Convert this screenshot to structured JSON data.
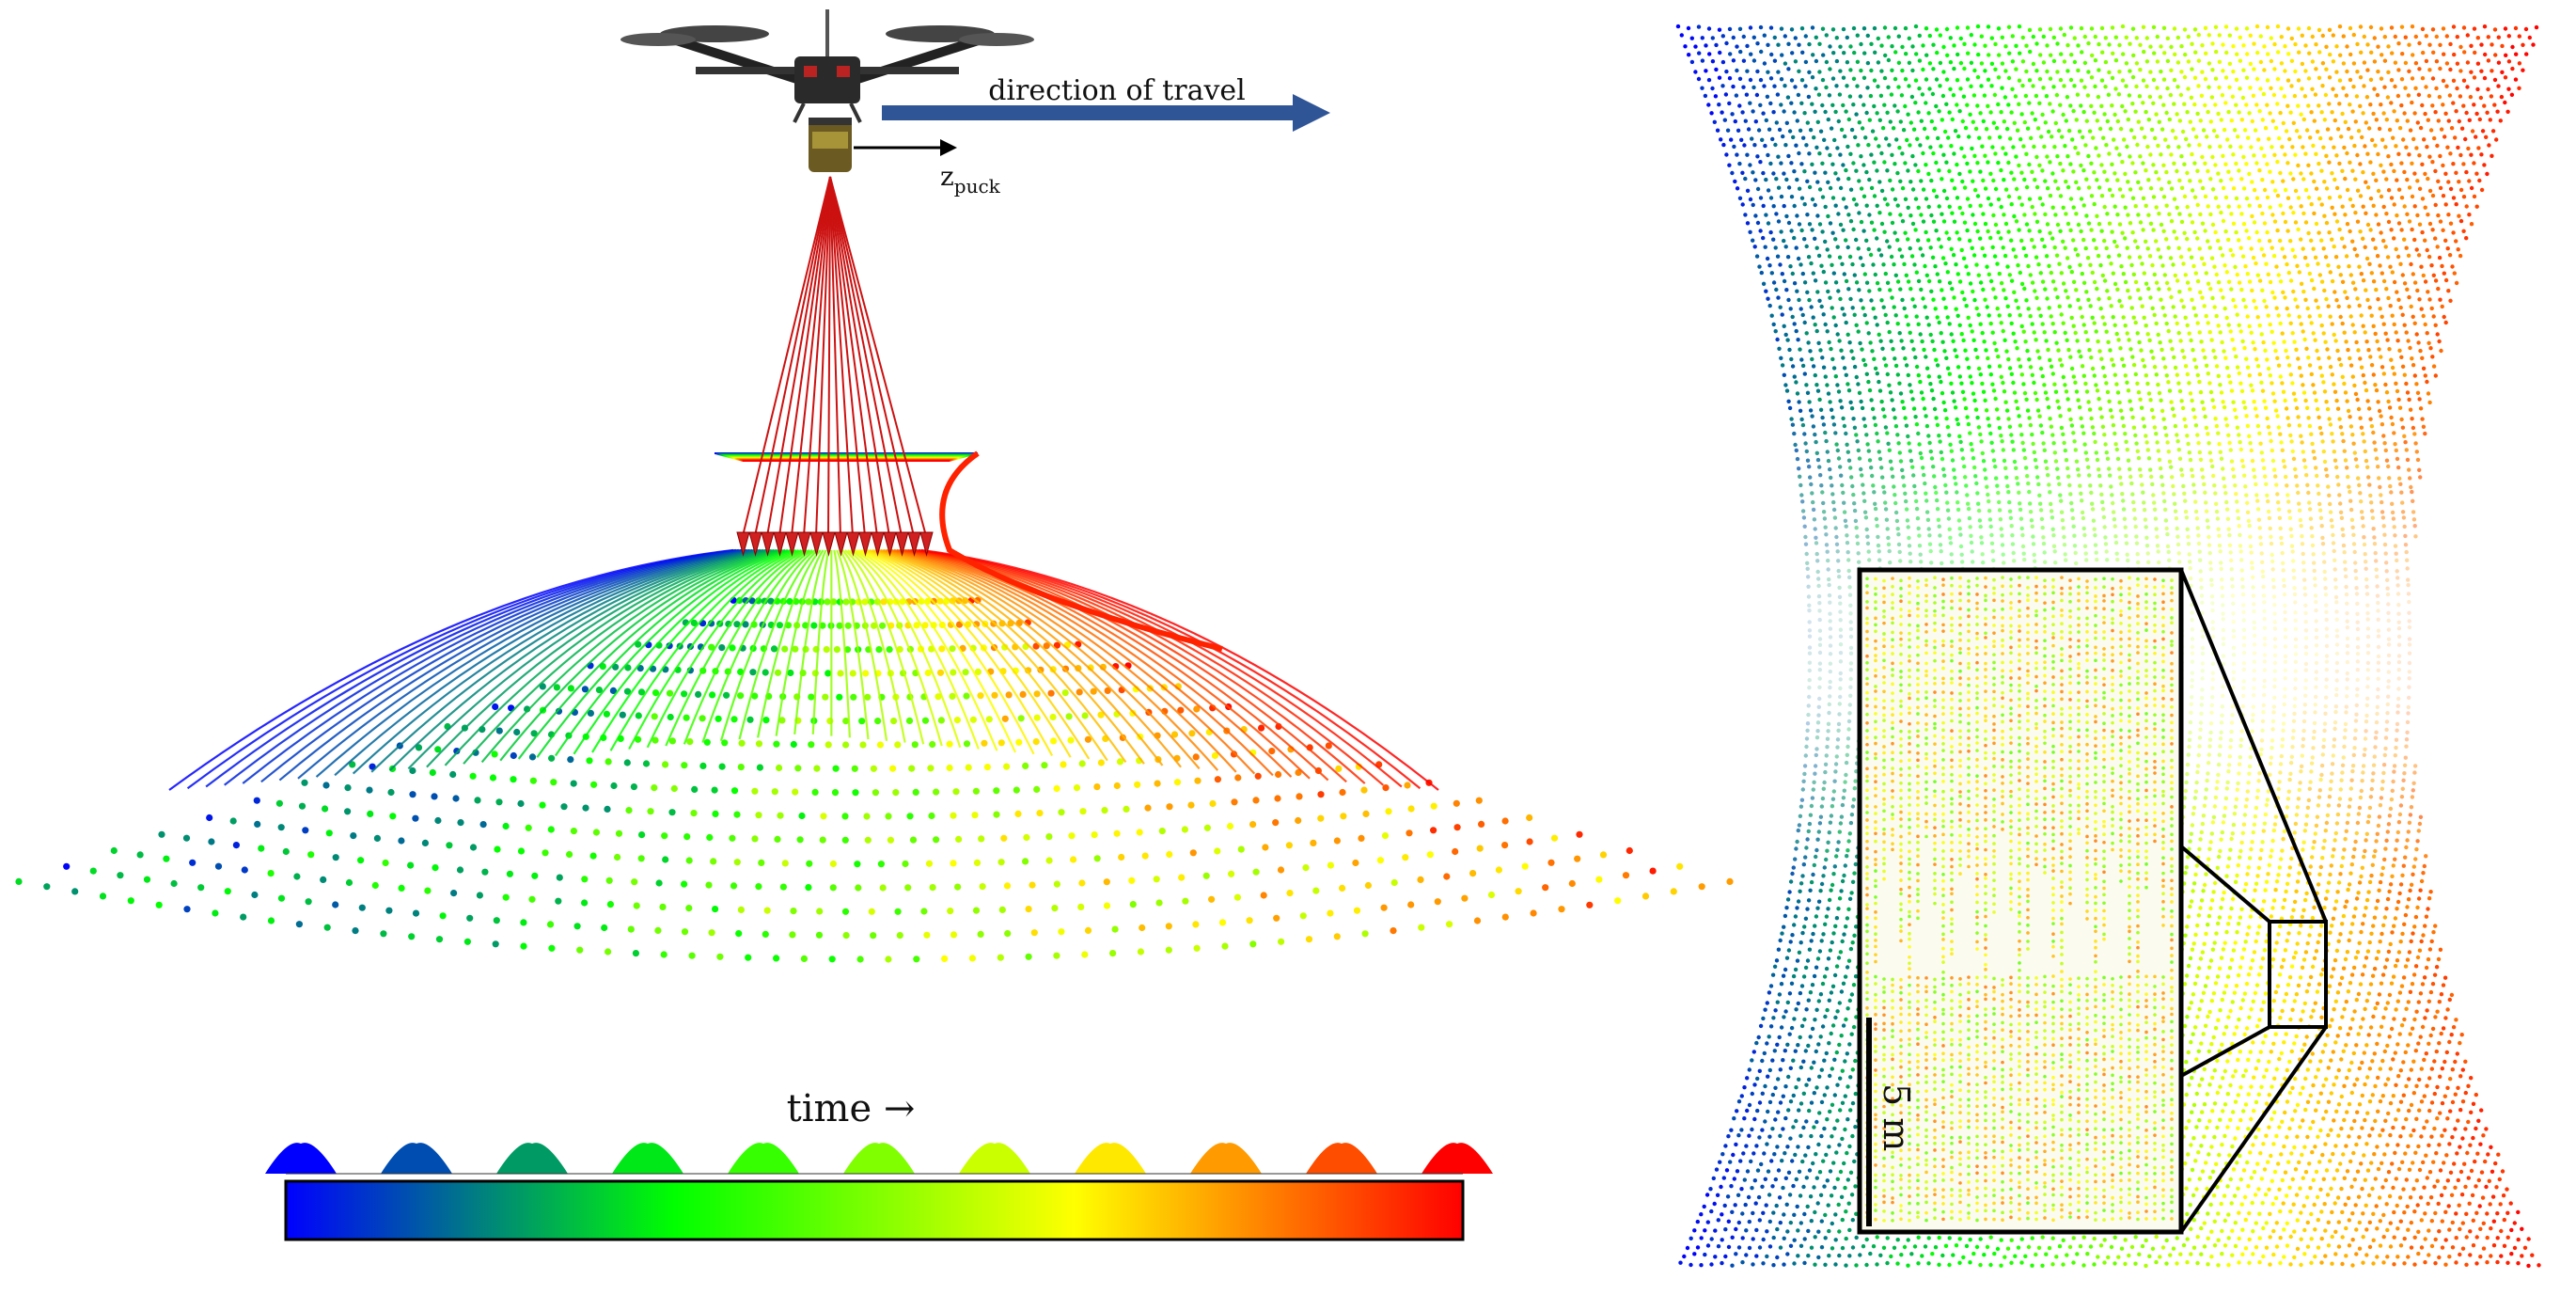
{
  "left_panel": {
    "travel_label": "direction of travel",
    "axis_label_main": "z",
    "axis_label_sub": "puck",
    "time_label": "time →"
  },
  "right_panel": {
    "scale_label": "5 m"
  },
  "colors": {
    "gradient": [
      "#0000ff",
      "#00ff00",
      "#ffff00",
      "#ff0000"
    ],
    "arrow": "#2f5597",
    "laser": "#cc1111"
  },
  "icons": [
    "drone-icon",
    "lidar-puck-icon"
  ]
}
